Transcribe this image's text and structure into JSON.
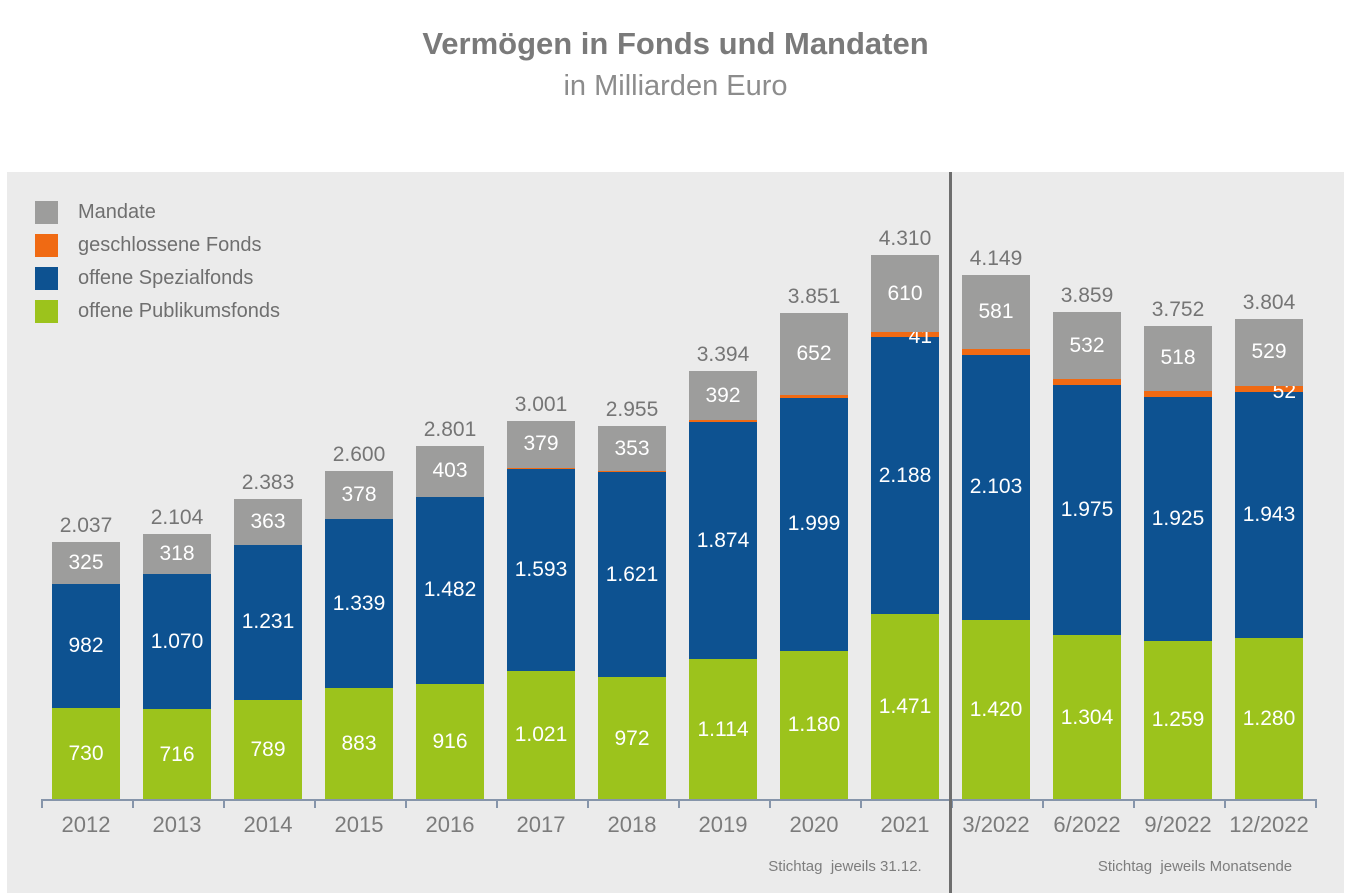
{
  "header": {
    "title": "Vermögen in Fonds und Mandaten",
    "subtitle": "in Milliarden Euro"
  },
  "legend": {
    "items": [
      {
        "label": "Mandate",
        "color": "#9d9d9c"
      },
      {
        "label": "geschlossene Fonds",
        "color": "#f06a13"
      },
      {
        "label": "offene Spezialfonds",
        "color": "#0d5291"
      },
      {
        "label": "offene Publikumsfonds",
        "color": "#9cc31c"
      }
    ]
  },
  "footnotes": {
    "left": "Stichtag  jeweils 31.12.",
    "right": "Stichtag  jeweils Monatsende"
  },
  "colors": {
    "panel_background": "#ebebeb",
    "axis": "#8695aa",
    "divider": "#6e6e6e",
    "total_label": "#757575",
    "segment_label": "#ffffff"
  },
  "chart_data": {
    "type": "bar",
    "stacked": true,
    "title": "Vermögen in Fonds und Mandaten",
    "subtitle": "in Milliarden Euro",
    "unit": "Milliarden Euro",
    "legend_position": "top-left",
    "grid": false,
    "ylim": [
      0,
      4310
    ],
    "categories": [
      "2012",
      "2013",
      "2014",
      "2015",
      "2016",
      "2017",
      "2018",
      "2019",
      "2020",
      "2021",
      "3/2022",
      "6/2022",
      "9/2022",
      "12/2022"
    ],
    "split_index": 10,
    "section_footnotes": [
      "Stichtag  jeweils 31.12.",
      "Stichtag  jeweils Monatsende"
    ],
    "series": [
      {
        "name": "offene Publikumsfonds",
        "color": "#9cc31c",
        "values": [
          730,
          716,
          789,
          883,
          916,
          1021,
          972,
          1114,
          1180,
          1471,
          1420,
          1304,
          1259,
          1280
        ],
        "labels": [
          "730",
          "716",
          "789",
          "883",
          "916",
          "1.021",
          "972",
          "1.114",
          "1.180",
          "1.471",
          "1.420",
          "1.304",
          "1.259",
          "1.280"
        ]
      },
      {
        "name": "offene Spezialfonds",
        "color": "#0d5291",
        "values": [
          982,
          1070,
          1231,
          1339,
          1482,
          1593,
          1621,
          1874,
          1999,
          2188,
          2103,
          1975,
          1925,
          1943
        ],
        "labels": [
          "982",
          "1.070",
          "1.231",
          "1.339",
          "1.482",
          "1.593",
          "1.621",
          "1.874",
          "1.999",
          "2.188",
          "2.103",
          "1.975",
          "1.925",
          "1.943"
        ]
      },
      {
        "name": "geschlossene Fonds",
        "color": "#f06a13",
        "values": [
          0,
          0,
          0,
          0,
          0,
          8,
          9,
          14,
          20,
          41,
          45,
          48,
          50,
          52
        ],
        "labels": [
          null,
          null,
          null,
          null,
          null,
          null,
          null,
          null,
          null,
          "41",
          null,
          null,
          null,
          "52"
        ]
      },
      {
        "name": "Mandate",
        "color": "#9d9d9c",
        "values": [
          325,
          318,
          363,
          378,
          403,
          379,
          353,
          392,
          652,
          610,
          581,
          532,
          518,
          529
        ],
        "labels": [
          "325",
          "318",
          "363",
          "378",
          "403",
          "379",
          "353",
          "392",
          "652",
          "610",
          "581",
          "532",
          "518",
          "529"
        ]
      }
    ],
    "totals": {
      "values": [
        2037,
        2104,
        2383,
        2600,
        2801,
        3001,
        2955,
        3394,
        3851,
        4310,
        4149,
        3859,
        3752,
        3804
      ],
      "labels": [
        "2.037",
        "2.104",
        "2.383",
        "2.600",
        "2.801",
        "3.001",
        "2.955",
        "3.394",
        "3.851",
        "4.310",
        "4.149",
        "3.859",
        "3.752",
        "3.804"
      ]
    }
  }
}
